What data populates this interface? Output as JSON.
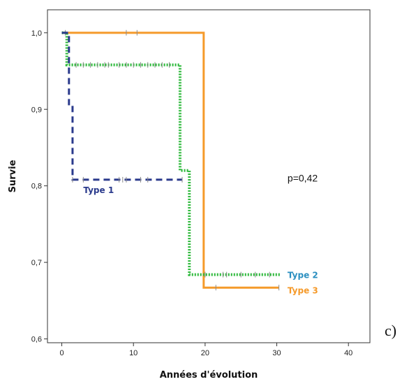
{
  "panel_label": "c)",
  "chart_data": {
    "type": "line",
    "xlabel": "Années d'évolution",
    "ylabel": "Survie",
    "xlim": [
      -2,
      43
    ],
    "ylim": [
      0.595,
      1.03
    ],
    "x_ticks": [
      0,
      10,
      20,
      30,
      40
    ],
    "x_tick_labels": [
      "0",
      "10",
      "20",
      "30",
      "40"
    ],
    "y_ticks": [
      0.6,
      0.7,
      0.8,
      0.9,
      1.0
    ],
    "y_tick_labels": [
      "0,6",
      "0,7",
      "0,8",
      "0,9",
      "1,0"
    ],
    "annotation": "p=0,42",
    "annotation_pos": [
      31.5,
      0.81
    ],
    "series": [
      {
        "name": "Type 1",
        "color": "#2a3a8c",
        "style": "dashed",
        "steps": [
          [
            0,
            1.0
          ],
          [
            1.0,
            0.905
          ],
          [
            1.5,
            0.808
          ],
          [
            16.8,
            0.808
          ]
        ],
        "censor": [
          1.5,
          3,
          8,
          8.5,
          9,
          11,
          12,
          16.8
        ],
        "label_pos": [
          3,
          0.795
        ]
      },
      {
        "name": "Type 2",
        "color": "#2ab838",
        "style": "dotted",
        "label_color": "#2b8fc0",
        "steps": [
          [
            0,
            1.0
          ],
          [
            0.7,
            0.958
          ],
          [
            16.5,
            0.82
          ],
          [
            17.8,
            0.684
          ],
          [
            30.5,
            0.684
          ]
        ],
        "censor": [
          0.5,
          2,
          3,
          4,
          5,
          6,
          6.5,
          8,
          9,
          10,
          11,
          12,
          13,
          14,
          15,
          20,
          22.5,
          23,
          25,
          27,
          29
        ],
        "label_pos": [
          31.5,
          0.684
        ]
      },
      {
        "name": "Type 3",
        "color": "#f59a2a",
        "style": "solid",
        "steps": [
          [
            0,
            1.0
          ],
          [
            19.8,
            0.667
          ],
          [
            30.3,
            0.667
          ]
        ],
        "censor": [
          9,
          10.5,
          21.5,
          30.3
        ],
        "label_pos": [
          31.5,
          0.664
        ]
      }
    ]
  }
}
